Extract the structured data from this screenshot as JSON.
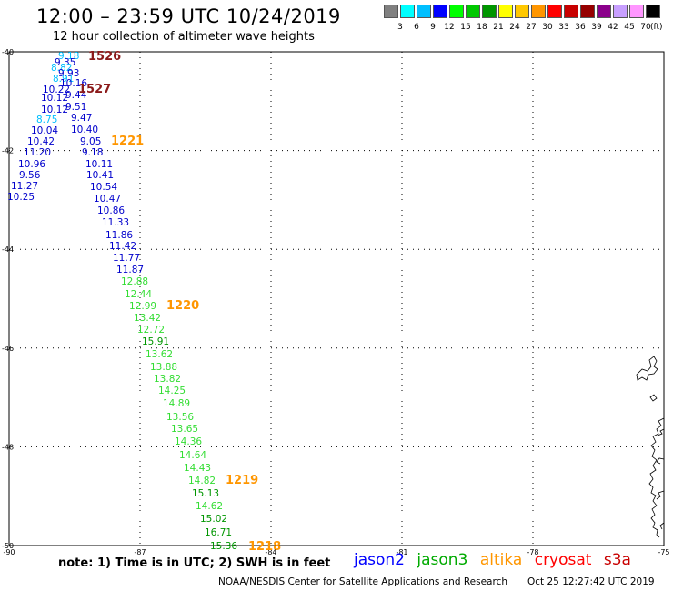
{
  "header": {
    "title": "12:00 – 23:59 UTC 10/24/2019",
    "subtitle": "12 hour collection of altimeter wave heights"
  },
  "scale": {
    "unit": "(ft)",
    "colors": [
      "#808080",
      "#00ffff",
      "#00bfff",
      "#0000ff",
      "#00ff00",
      "#00c800",
      "#009600",
      "#ffff00",
      "#ffc800",
      "#ff9600",
      "#ff0000",
      "#c80000",
      "#960000",
      "#8b008b",
      "#c8a0ff",
      "#ff96ff",
      "#000000"
    ],
    "labels": [
      "3",
      "6",
      "9",
      "12",
      "15",
      "18",
      "21",
      "24",
      "27",
      "30",
      "33",
      "36",
      "39",
      "42",
      "45",
      "70"
    ]
  },
  "map": {
    "lon_range": [
      -90,
      -75
    ],
    "lat_range": [
      -50,
      -40
    ],
    "lon_ticks": [
      "-90",
      "-87",
      "-84",
      "-81",
      "-78",
      "-75"
    ],
    "lat_ticks": [
      "-40",
      "-42",
      "-44",
      "-46",
      "-48",
      "-50"
    ]
  },
  "pass_labels": [
    {
      "id": "1526",
      "color": "#8b1a1a"
    },
    {
      "id": "1527",
      "color": "#8b1a1a"
    },
    {
      "id": "1221",
      "color": "#ff9600"
    },
    {
      "id": "1220",
      "color": "#ff9600"
    },
    {
      "id": "1219",
      "color": "#ff9600"
    },
    {
      "id": "1218",
      "color": "#ff9600"
    }
  ],
  "wave_heights": [
    {
      "v": "9.18",
      "c": "#00bfff"
    },
    {
      "v": "9.35",
      "c": "#0000cc"
    },
    {
      "v": "8.82",
      "c": "#00bfff"
    },
    {
      "v": "9.93",
      "c": "#0000cc"
    },
    {
      "v": "8.91",
      "c": "#00bfff"
    },
    {
      "v": "10.16",
      "c": "#0000cc"
    },
    {
      "v": "10.22",
      "c": "#0000cc"
    },
    {
      "v": "9.44",
      "c": "#0000cc"
    },
    {
      "v": "10.12",
      "c": "#0000cc"
    },
    {
      "v": "9.51",
      "c": "#0000cc"
    },
    {
      "v": "10.12",
      "c": "#0000cc"
    },
    {
      "v": "8.75",
      "c": "#00bfff"
    },
    {
      "v": "9.47",
      "c": "#0000cc"
    },
    {
      "v": "10.04",
      "c": "#0000cc"
    },
    {
      "v": "10.40",
      "c": "#0000cc"
    },
    {
      "v": "10.42",
      "c": "#0000cc"
    },
    {
      "v": "9.05",
      "c": "#0000cc"
    },
    {
      "v": "11.20",
      "c": "#0000cc"
    },
    {
      "v": "9.18",
      "c": "#0000cc"
    },
    {
      "v": "10.96",
      "c": "#0000cc"
    },
    {
      "v": "10.11",
      "c": "#0000cc"
    },
    {
      "v": "9.56",
      "c": "#0000cc"
    },
    {
      "v": "10.41",
      "c": "#0000cc"
    },
    {
      "v": "11.27",
      "c": "#0000cc"
    },
    {
      "v": "10.54",
      "c": "#0000cc"
    },
    {
      "v": "10.25",
      "c": "#0000cc"
    },
    {
      "v": "10.47",
      "c": "#0000cc"
    },
    {
      "v": "10.86",
      "c": "#0000cc"
    },
    {
      "v": "11.33",
      "c": "#0000cc"
    },
    {
      "v": "11.86",
      "c": "#0000cc"
    },
    {
      "v": "11.42",
      "c": "#0000cc"
    },
    {
      "v": "11.77",
      "c": "#0000cc"
    },
    {
      "v": "11.87",
      "c": "#0000cc"
    },
    {
      "v": "12.88",
      "c": "#33dd33"
    },
    {
      "v": "12.44",
      "c": "#33dd33"
    },
    {
      "v": "12.99",
      "c": "#33dd33"
    },
    {
      "v": "13.42",
      "c": "#33dd33"
    },
    {
      "v": "12.72",
      "c": "#33dd33"
    },
    {
      "v": "15.91",
      "c": "#009600"
    },
    {
      "v": "13.62",
      "c": "#33dd33"
    },
    {
      "v": "13.88",
      "c": "#33dd33"
    },
    {
      "v": "13.82",
      "c": "#33dd33"
    },
    {
      "v": "14.25",
      "c": "#33dd33"
    },
    {
      "v": "14.89",
      "c": "#33dd33"
    },
    {
      "v": "13.56",
      "c": "#33dd33"
    },
    {
      "v": "13.65",
      "c": "#33dd33"
    },
    {
      "v": "14.36",
      "c": "#33dd33"
    },
    {
      "v": "14.64",
      "c": "#33dd33"
    },
    {
      "v": "14.43",
      "c": "#33dd33"
    },
    {
      "v": "14.82",
      "c": "#33dd33"
    },
    {
      "v": "15.13",
      "c": "#009600"
    },
    {
      "v": "14.62",
      "c": "#33dd33"
    },
    {
      "v": "15.02",
      "c": "#009600"
    },
    {
      "v": "16.71",
      "c": "#009600"
    },
    {
      "v": "15.36",
      "c": "#009600"
    }
  ],
  "footer": {
    "note": "note:  1) Time is in UTC;  2) SWH is in feet",
    "satellites": [
      {
        "name": "jason2",
        "color": "#0000ff"
      },
      {
        "name": "jason3",
        "color": "#00aa00"
      },
      {
        "name": "altika",
        "color": "#ff9600"
      },
      {
        "name": "cryosat",
        "color": "#ff0000"
      },
      {
        "name": "s3a",
        "color": "#c80000"
      }
    ],
    "credit": "NOAA/NESDIS Center for Satellite Applications and Research",
    "timestamp": "Oct 25 12:27:42 UTC 2019"
  }
}
